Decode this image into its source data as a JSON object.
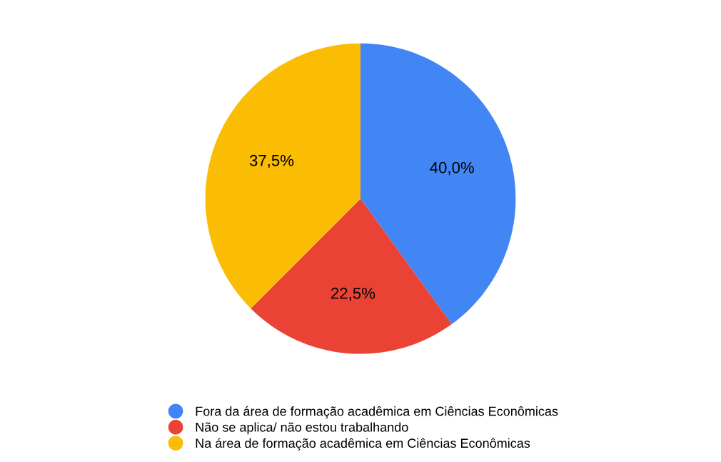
{
  "chart_data": {
    "type": "pie",
    "categories": [
      "Fora da área de formação acadêmica em Ciências Econômicas",
      "Não se aplica/ não estou trabalhando",
      "Na área de formação acadêmica em Ciências Econômicas"
    ],
    "values": [
      40.0,
      22.5,
      37.5
    ],
    "colors": [
      "#4285f4",
      "#ea4335",
      "#fbbc04"
    ],
    "value_labels": [
      "40,0%",
      "22,5%",
      "37,5%"
    ],
    "legend": "bottom"
  }
}
